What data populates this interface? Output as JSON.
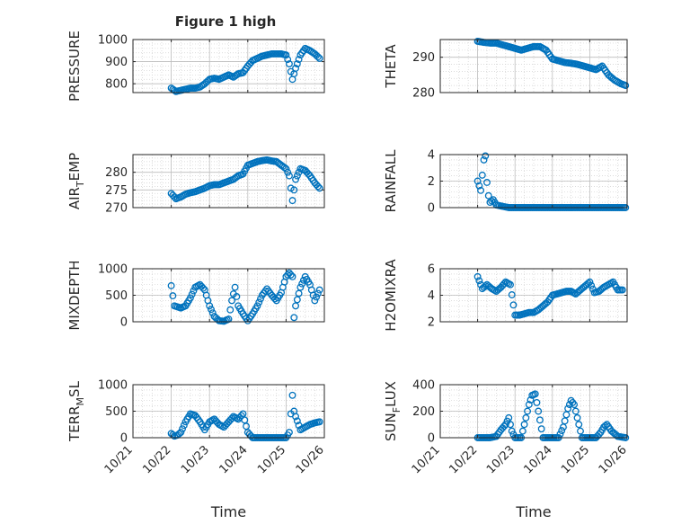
{
  "figure": {
    "title": "Figure 1 high",
    "marker_color": "#0072BD",
    "grid_color": "#d0d0d0",
    "axis_color": "#262626"
  },
  "chart_data": [
    {
      "type": "scatter",
      "id": "pressure",
      "ylabel": "PRESSURE",
      "xlabel": "",
      "xlim": [
        "10/21",
        "10/26"
      ],
      "ylim": [
        760,
        1000
      ],
      "yticks": [
        800,
        900,
        1000
      ],
      "xticks": [],
      "x": [
        "10/22 00:00",
        "10/22 03:00",
        "10/22 06:00",
        "10/22 09:00",
        "10/22 12:00",
        "10/22 15:00",
        "10/22 18:00",
        "10/22 21:00",
        "10/23 00:00",
        "10/23 03:00",
        "10/23 06:00",
        "10/23 09:00",
        "10/23 12:00",
        "10/23 15:00",
        "10/23 18:00",
        "10/23 21:00",
        "10/24 00:00",
        "10/24 03:00",
        "10/24 06:00",
        "10/24 09:00",
        "10/24 12:00",
        "10/24 15:00",
        "10/24 18:00",
        "10/24 21:00",
        "10/25 00:00",
        "10/25 02:00",
        "10/25 04:00",
        "10/25 06:00",
        "10/25 09:00",
        "10/25 12:00",
        "10/25 15:00",
        "10/25 18:00",
        "10/25 21:00"
      ],
      "y": [
        780,
        765,
        770,
        775,
        780,
        780,
        785,
        800,
        820,
        825,
        820,
        830,
        840,
        830,
        845,
        850,
        880,
        905,
        915,
        925,
        930,
        935,
        935,
        935,
        930,
        890,
        820,
        870,
        930,
        960,
        950,
        935,
        915
      ]
    },
    {
      "type": "scatter",
      "id": "theta",
      "ylabel": "THETA",
      "xlabel": "",
      "xlim": [
        "10/21",
        "10/26"
      ],
      "ylim": [
        280,
        295
      ],
      "yticks": [
        280,
        290
      ],
      "xticks": [],
      "x": [
        "10/22 00:00",
        "10/22 04:00",
        "10/22 08:00",
        "10/22 12:00",
        "10/22 16:00",
        "10/22 20:00",
        "10/23 00:00",
        "10/23 04:00",
        "10/23 08:00",
        "10/23 12:00",
        "10/23 16:00",
        "10/23 20:00",
        "10/24 00:00",
        "10/24 04:00",
        "10/24 08:00",
        "10/24 12:00",
        "10/24 16:00",
        "10/24 20:00",
        "10/25 00:00",
        "10/25 04:00",
        "10/25 08:00",
        "10/25 12:00",
        "10/25 16:00",
        "10/25 20:00",
        "10/25 23:00"
      ],
      "y": [
        294.5,
        294.2,
        294,
        294,
        293.5,
        293,
        292.5,
        292,
        292.5,
        293,
        293,
        292,
        289.5,
        289,
        288.5,
        288.3,
        288,
        287.5,
        287,
        286.5,
        287.5,
        285,
        283.5,
        282.5,
        282
      ]
    },
    {
      "type": "scatter",
      "id": "air_temp",
      "ylabel": "AIR",
      "ylabel_sub": "T",
      "ylabel_rest": "EMP",
      "xlabel": "",
      "xlim": [
        "10/21",
        "10/26"
      ],
      "ylim": [
        270,
        285
      ],
      "yticks": [
        270,
        275,
        280
      ],
      "xticks": [],
      "x": [
        "10/22 00:00",
        "10/22 03:00",
        "10/22 06:00",
        "10/22 09:00",
        "10/22 12:00",
        "10/22 15:00",
        "10/22 18:00",
        "10/22 21:00",
        "10/23 00:00",
        "10/23 03:00",
        "10/23 06:00",
        "10/23 09:00",
        "10/23 12:00",
        "10/23 15:00",
        "10/23 18:00",
        "10/23 21:00",
        "10/24 00:00",
        "10/24 03:00",
        "10/24 06:00",
        "10/24 09:00",
        "10/24 12:00",
        "10/24 15:00",
        "10/24 18:00",
        "10/24 21:00",
        "10/25 00:00",
        "10/25 02:00",
        "10/25 04:00",
        "10/25 06:00",
        "10/25 09:00",
        "10/25 12:00",
        "10/25 15:00",
        "10/25 18:00",
        "10/25 21:00"
      ],
      "y": [
        274,
        272.5,
        273,
        273.8,
        274.2,
        274.5,
        275,
        275.5,
        276.2,
        276.5,
        276.5,
        277,
        277.5,
        278,
        279,
        279.5,
        282,
        282.5,
        283,
        283.3,
        283.5,
        283.2,
        283,
        282,
        281,
        279,
        272,
        278,
        281,
        280.5,
        279,
        277,
        275.5
      ]
    },
    {
      "type": "scatter",
      "id": "rainfall",
      "ylabel": "RAINFALL",
      "xlabel": "",
      "xlim": [
        "10/21",
        "10/26"
      ],
      "ylim": [
        0,
        4
      ],
      "yticks": [
        0,
        2,
        4
      ],
      "xticks": [],
      "x": [
        "10/22 00:00",
        "10/22 02:00",
        "10/22 04:00",
        "10/22 05:00",
        "10/22 06:00",
        "10/22 07:00",
        "10/22 08:00",
        "10/22 10:00",
        "10/22 12:00",
        "10/22 16:00",
        "10/22 20:00",
        "10/23 00:00",
        "10/23 08:00",
        "10/23 16:00",
        "10/24 00:00",
        "10/24 08:00",
        "10/24 16:00",
        "10/25 00:00",
        "10/25 08:00",
        "10/25 16:00",
        "10/25 23:00"
      ],
      "y": [
        2,
        1.3,
        3.6,
        3.9,
        1.9,
        0.9,
        0.4,
        0.6,
        0.2,
        0.1,
        0,
        0,
        0,
        0,
        0,
        0,
        0,
        0,
        0,
        0,
        0
      ]
    },
    {
      "type": "scatter",
      "id": "mixdepth",
      "ylabel": "MIXDEPTH",
      "xlabel": "",
      "xlim": [
        "10/21",
        "10/26"
      ],
      "ylim": [
        0,
        1000
      ],
      "yticks": [
        0,
        500,
        1000
      ],
      "xticks": [],
      "x": [
        "10/22 00:00",
        "10/22 02:00",
        "10/22 04:00",
        "10/22 06:00",
        "10/22 09:00",
        "10/22 12:00",
        "10/22 15:00",
        "10/22 18:00",
        "10/22 21:00",
        "10/23 00:00",
        "10/23 03:00",
        "10/23 06:00",
        "10/23 09:00",
        "10/23 12:00",
        "10/23 14:00",
        "10/23 16:00",
        "10/23 18:00",
        "10/23 21:00",
        "10/24 00:00",
        "10/24 03:00",
        "10/24 06:00",
        "10/24 09:00",
        "10/24 12:00",
        "10/24 15:00",
        "10/24 18:00",
        "10/24 21:00",
        "10/25 00:00",
        "10/25 02:00",
        "10/25 04:00",
        "10/25 05:00",
        "10/25 06:00",
        "10/25 09:00",
        "10/25 12:00",
        "10/25 15:00",
        "10/25 18:00",
        "10/25 21:00"
      ],
      "y": [
        680,
        300,
        280,
        260,
        300,
        450,
        650,
        700,
        600,
        300,
        100,
        20,
        10,
        50,
        400,
        650,
        300,
        150,
        20,
        150,
        300,
        500,
        620,
        500,
        400,
        550,
        850,
        920,
        850,
        80,
        300,
        650,
        850,
        700,
        400,
        600
      ]
    },
    {
      "type": "scatter",
      "id": "h2omixra",
      "ylabel": "H2OMIXRA",
      "xlabel": "",
      "xlim": [
        "10/21",
        "10/26"
      ],
      "ylim": [
        2,
        6
      ],
      "yticks": [
        2,
        4,
        6
      ],
      "xticks": [],
      "x": [
        "10/22 00:00",
        "10/22 03:00",
        "10/22 06:00",
        "10/22 09:00",
        "10/22 12:00",
        "10/22 15:00",
        "10/22 18:00",
        "10/22 21:00",
        "10/23 00:00",
        "10/23 03:00",
        "10/23 06:00",
        "10/23 09:00",
        "10/23 12:00",
        "10/23 15:00",
        "10/23 18:00",
        "10/23 21:00",
        "10/24 00:00",
        "10/24 03:00",
        "10/24 06:00",
        "10/24 09:00",
        "10/24 12:00",
        "10/24 15:00",
        "10/24 18:00",
        "10/24 21:00",
        "10/25 00:00",
        "10/25 03:00",
        "10/25 06:00",
        "10/25 09:00",
        "10/25 12:00",
        "10/25 15:00",
        "10/25 18:00",
        "10/25 21:00"
      ],
      "y": [
        5.4,
        4.5,
        4.8,
        4.5,
        4.3,
        4.6,
        5,
        4.8,
        2.5,
        2.5,
        2.6,
        2.7,
        2.7,
        2.9,
        3.2,
        3.5,
        4,
        4.1,
        4.2,
        4.3,
        4.3,
        4.1,
        4.4,
        4.7,
        5,
        4.2,
        4.3,
        4.6,
        4.8,
        5,
        4.4,
        4.4
      ]
    },
    {
      "type": "scatter",
      "id": "terr_msl",
      "ylabel": "TERR",
      "ylabel_sub": "M",
      "ylabel_rest": "SL",
      "xlabel": "Time",
      "xlim": [
        "10/21",
        "10/26"
      ],
      "ylim": [
        0,
        1000
      ],
      "yticks": [
        0,
        500,
        1000
      ],
      "xticks": [
        "10/21",
        "10/22",
        "10/23",
        "10/24",
        "10/25",
        "10/26"
      ],
      "x": [
        "10/22 00:00",
        "10/22 02:00",
        "10/22 04:00",
        "10/22 06:00",
        "10/22 09:00",
        "10/22 12:00",
        "10/22 15:00",
        "10/22 18:00",
        "10/22 21:00",
        "10/23 00:00",
        "10/23 03:00",
        "10/23 06:00",
        "10/23 09:00",
        "10/23 12:00",
        "10/23 15:00",
        "10/23 18:00",
        "10/23 21:00",
        "10/24 00:00",
        "10/24 03:00",
        "10/24 06:00",
        "10/24 09:00",
        "10/24 12:00",
        "10/24 15:00",
        "10/24 18:00",
        "10/24 21:00",
        "10/25 00:00",
        "10/25 02:00",
        "10/25 04:00",
        "10/25 05:00",
        "10/25 06:00",
        "10/25 09:00",
        "10/25 12:00",
        "10/25 15:00",
        "10/25 18:00",
        "10/25 21:00"
      ],
      "y": [
        80,
        30,
        50,
        100,
        300,
        450,
        420,
        300,
        150,
        300,
        350,
        250,
        200,
        300,
        400,
        350,
        450,
        100,
        0,
        0,
        0,
        0,
        0,
        0,
        0,
        0,
        100,
        800,
        500,
        400,
        150,
        200,
        250,
        280,
        300
      ]
    },
    {
      "type": "scatter",
      "id": "sun_flux",
      "ylabel": "SUN",
      "ylabel_sub": "F",
      "ylabel_rest": "LUX",
      "xlabel": "Time",
      "xlim": [
        "10/21",
        "10/26"
      ],
      "ylim": [
        0,
        400
      ],
      "yticks": [
        0,
        200,
        400
      ],
      "xticks": [
        "10/21",
        "10/22",
        "10/23",
        "10/24",
        "10/25",
        "10/26"
      ],
      "x": [
        "10/22 00:00",
        "10/22 04:00",
        "10/22 08:00",
        "10/22 12:00",
        "10/22 15:00",
        "10/22 18:00",
        "10/22 20:00",
        "10/22 22:00",
        "10/23 00:00",
        "10/23 04:00",
        "10/23 06:00",
        "10/23 09:00",
        "10/23 11:00",
        "10/23 13:00",
        "10/23 15:00",
        "10/23 18:00",
        "10/24 00:00",
        "10/24 04:00",
        "10/24 07:00",
        "10/24 10:00",
        "10/24 12:00",
        "10/24 14:00",
        "10/24 16:00",
        "10/24 19:00",
        "10/25 00:00",
        "10/25 04:00",
        "10/25 07:00",
        "10/25 09:00",
        "10/25 11:00",
        "10/25 14:00",
        "10/25 18:00",
        "10/25 23:00"
      ],
      "y": [
        0,
        0,
        0,
        10,
        60,
        100,
        150,
        50,
        0,
        0,
        100,
        250,
        320,
        330,
        200,
        0,
        0,
        0,
        80,
        220,
        280,
        250,
        150,
        0,
        0,
        0,
        40,
        80,
        100,
        50,
        10,
        0
      ]
    }
  ]
}
